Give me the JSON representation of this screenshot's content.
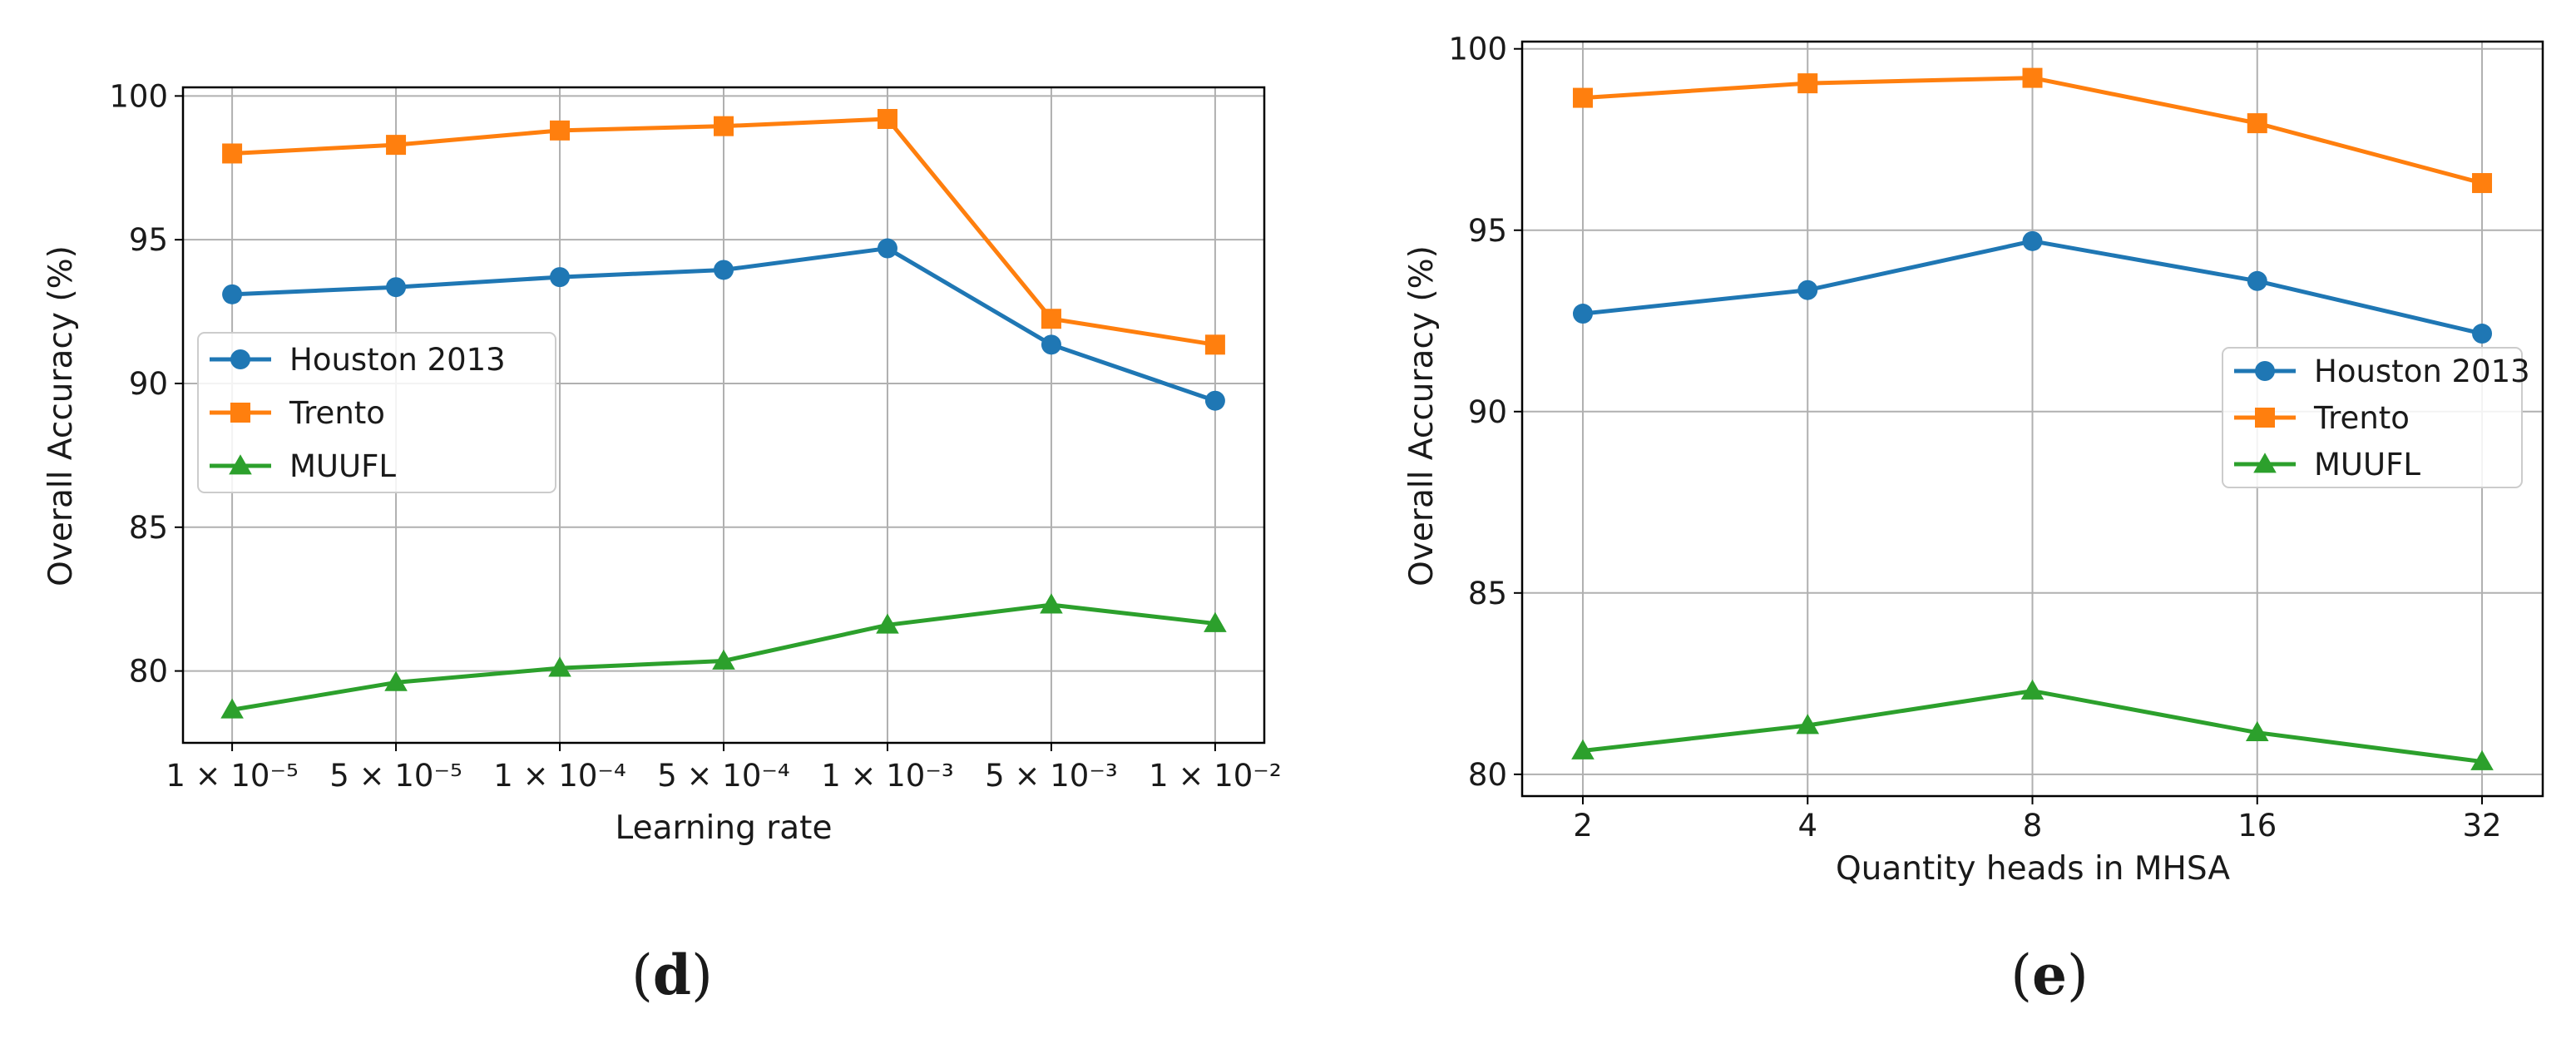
{
  "chart_data": [
    {
      "type": "line",
      "panel_label": "d",
      "xlabel": "Learning rate",
      "ylabel": "Overall Accuracy (%)",
      "categories": [
        "1 × 10⁻⁵",
        "5 × 10⁻⁵",
        "1 × 10⁻⁴",
        "5 × 10⁻⁴",
        "1 × 10⁻³",
        "5 × 10⁻³",
        "1 × 10⁻²"
      ],
      "ylim": [
        77.5,
        100.3
      ],
      "yticks": [
        80,
        85,
        90,
        95,
        100
      ],
      "grid": true,
      "legend_position": "center-left",
      "series": [
        {
          "name": "Houston 2013",
          "color": "#1f77b4",
          "marker": "circle",
          "values": [
            93.1,
            93.35,
            93.7,
            93.95,
            94.7,
            91.35,
            89.4
          ]
        },
        {
          "name": "Trento",
          "color": "#ff7f0e",
          "marker": "square",
          "values": [
            98.0,
            98.3,
            98.8,
            98.95,
            99.2,
            92.25,
            91.35
          ]
        },
        {
          "name": "MUUFL",
          "color": "#2ca02c",
          "marker": "triangle",
          "values": [
            78.65,
            79.6,
            80.1,
            80.35,
            81.6,
            82.3,
            81.65
          ]
        }
      ]
    },
    {
      "type": "line",
      "panel_label": "e",
      "xlabel": "Quantity heads in MHSA",
      "ylabel": "Overall Accuracy (%)",
      "categories": [
        "2",
        "4",
        "8",
        "16",
        "32"
      ],
      "ylim": [
        79.4,
        100.2
      ],
      "yticks": [
        80,
        85,
        90,
        95,
        100
      ],
      "grid": true,
      "legend_position": "center-right",
      "series": [
        {
          "name": "Houston 2013",
          "color": "#1f77b4",
          "marker": "circle",
          "values": [
            92.7,
            93.35,
            94.7,
            93.6,
            92.15
          ]
        },
        {
          "name": "Trento",
          "color": "#ff7f0e",
          "marker": "square",
          "values": [
            98.65,
            99.05,
            99.2,
            97.95,
            96.3
          ]
        },
        {
          "name": "MUUFL",
          "color": "#2ca02c",
          "marker": "triangle",
          "values": [
            80.65,
            81.35,
            82.3,
            81.15,
            80.35
          ]
        }
      ]
    }
  ]
}
